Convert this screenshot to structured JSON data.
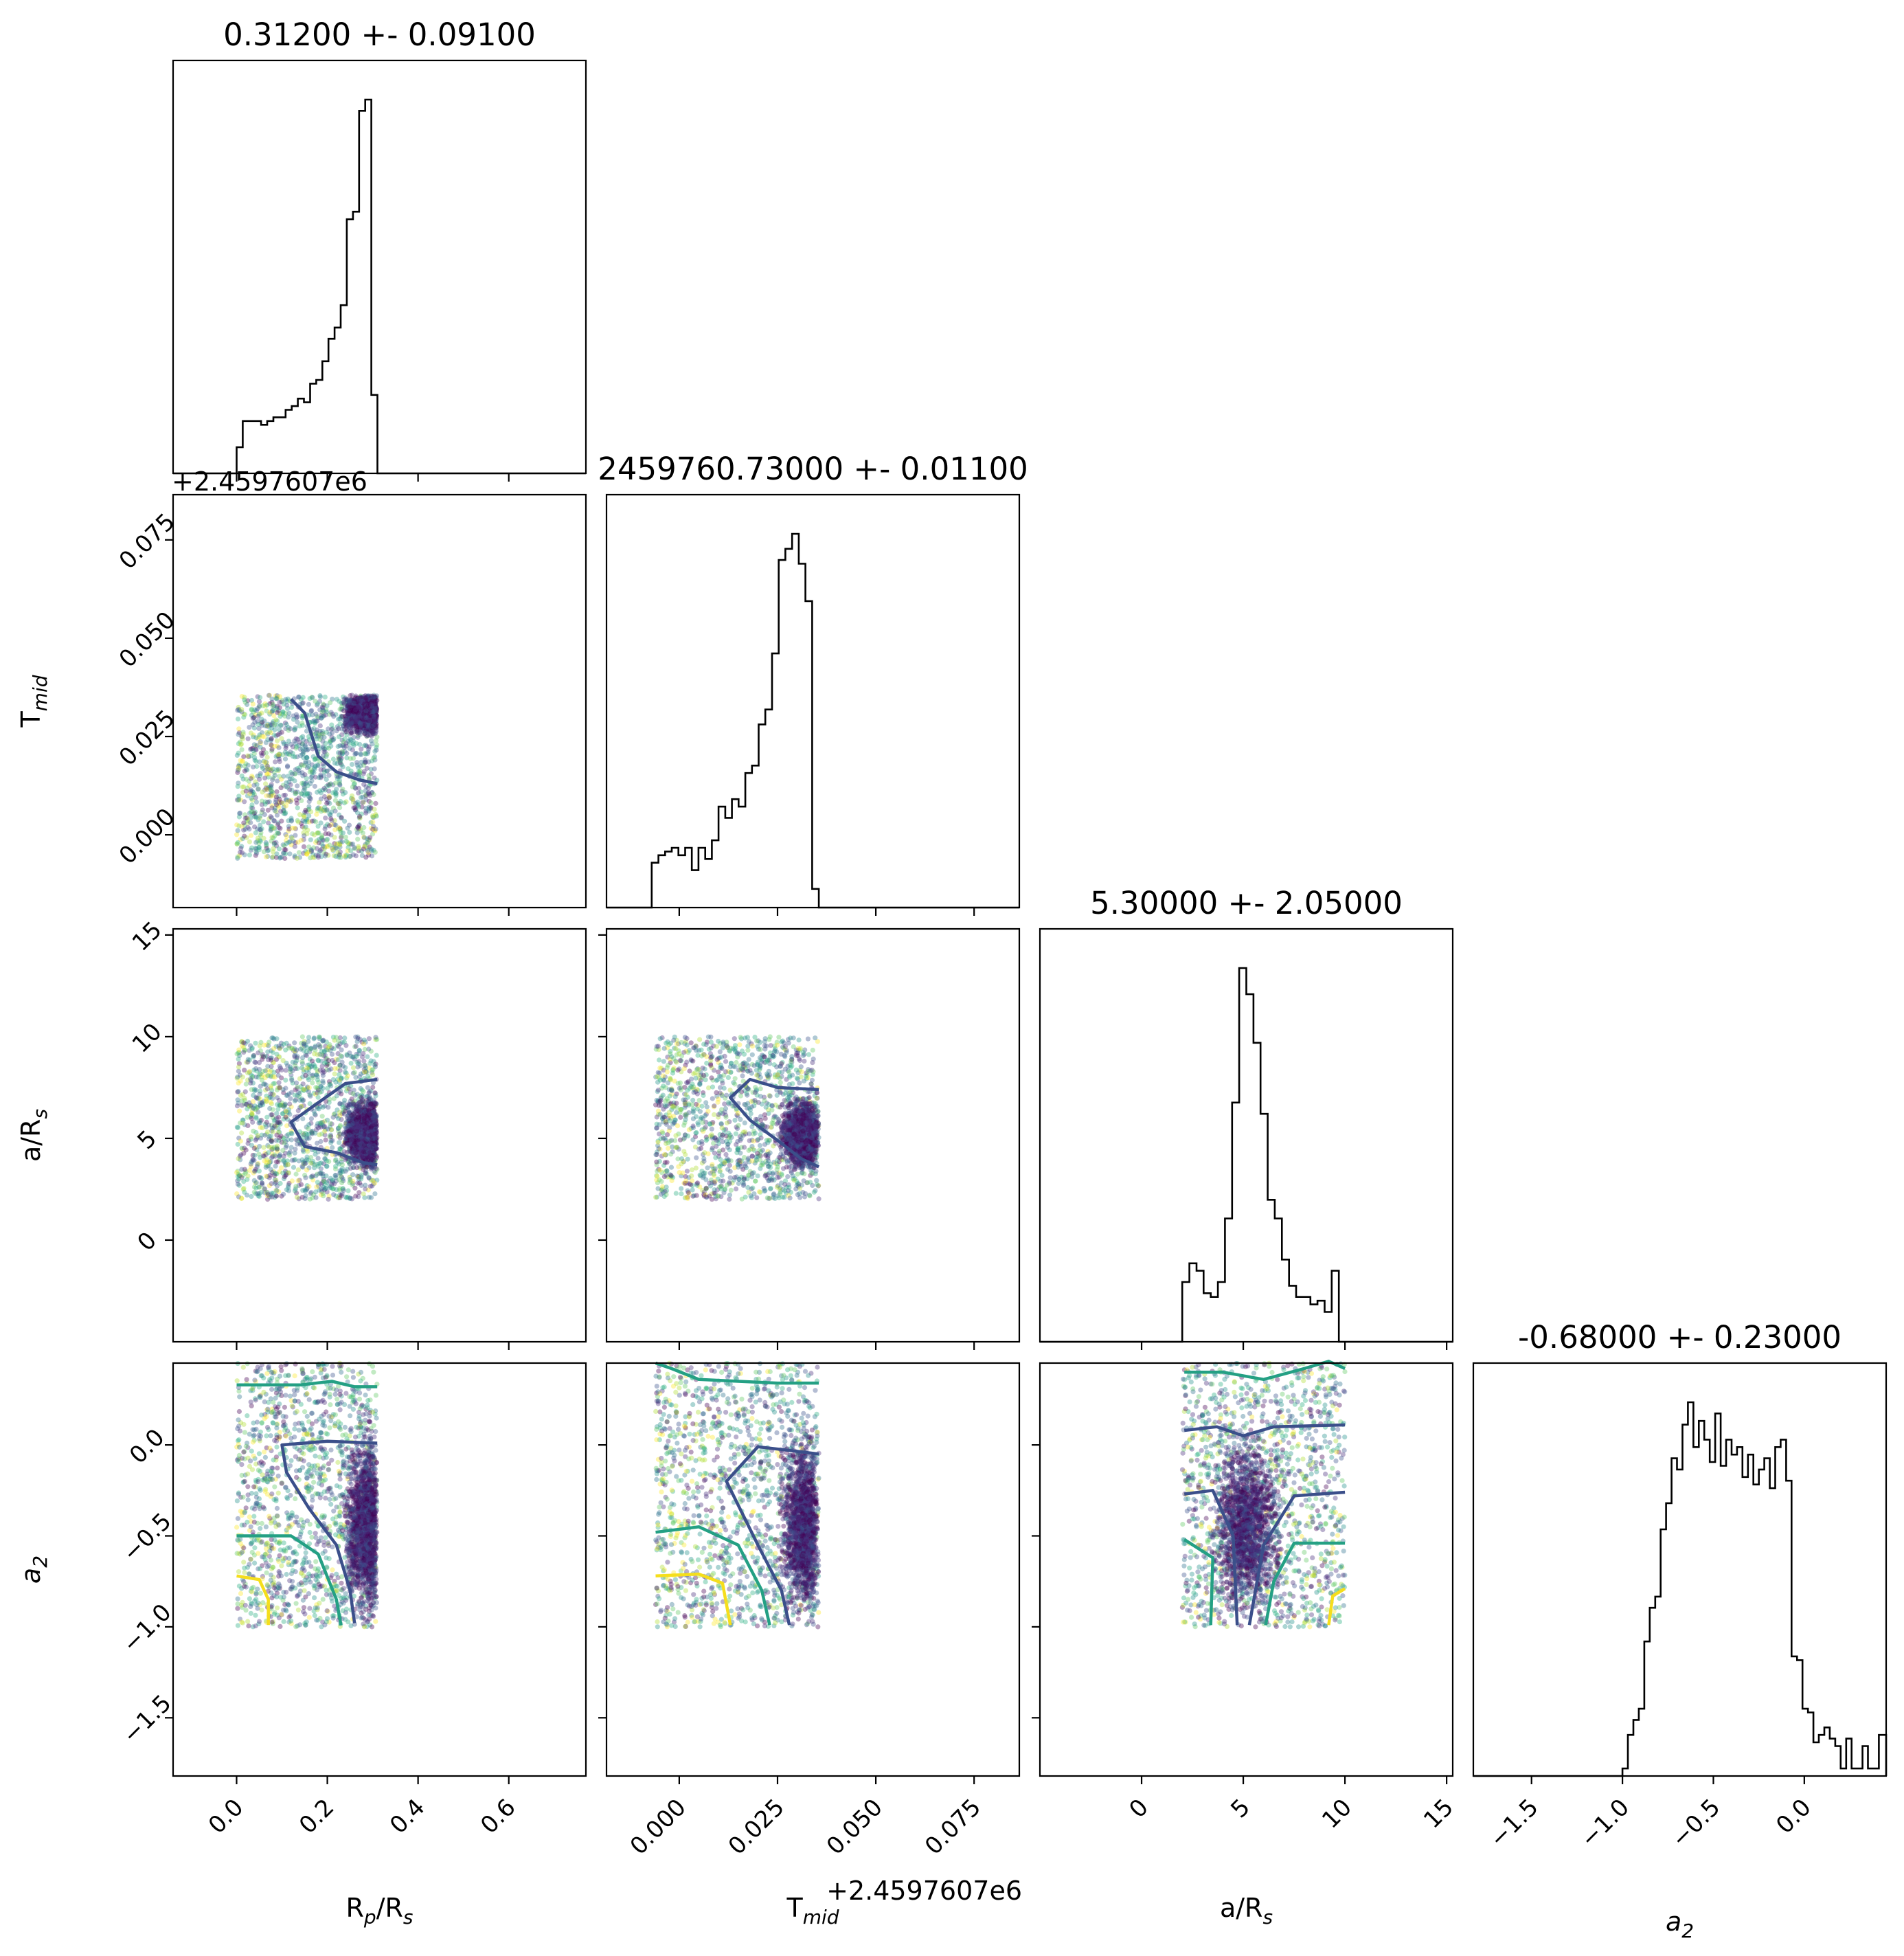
{
  "figure": {
    "type": "corner-plot"
  },
  "chart_data": {
    "type": "corner",
    "parameters": [
      {
        "key": "rp",
        "label": "R",
        "label_sub": "p",
        "label_suffix": "/R",
        "label_suffix_sub": "s",
        "title": "0.31200 +- 0.09100",
        "range": [
          -0.14,
          0.77
        ],
        "ticks": [
          0.0,
          0.2,
          0.4,
          0.6
        ],
        "tick_labels": [
          "0.0",
          "0.2",
          "0.4",
          "0.6"
        ],
        "offset_label": "",
        "samples_range": [
          0.0,
          0.31
        ],
        "hist": {
          "edges": [
            0.0,
            0.0135,
            0.027,
            0.0405,
            0.054,
            0.0675,
            0.081,
            0.0945,
            0.108,
            0.1215,
            0.135,
            0.1485,
            0.162,
            0.1755,
            0.189,
            0.2025,
            0.216,
            0.2295,
            0.243,
            0.2565,
            0.27,
            0.2835,
            0.297,
            0.3105,
            0.324
          ],
          "counts": [
            0.07,
            0.14,
            0.14,
            0.14,
            0.13,
            0.14,
            0.15,
            0.15,
            0.17,
            0.18,
            0.2,
            0.19,
            0.24,
            0.25,
            0.3,
            0.36,
            0.39,
            0.45,
            0.68,
            0.7,
            0.97,
            1.0,
            0.21,
            0.0
          ]
        }
      },
      {
        "key": "tmid",
        "label": "T",
        "label_sub": "mid",
        "label_suffix": "",
        "label_suffix_sub": "",
        "title": "2459760.73000 +- 0.01100",
        "range": [
          -0.0185,
          0.0865
        ],
        "ticks": [
          0.0,
          0.025,
          0.05,
          0.075
        ],
        "tick_labels": [
          "0.000",
          "0.025",
          "0.050",
          "0.075"
        ],
        "offset_label": "+2.4597607e6",
        "samples_range": [
          -0.006,
          0.0355
        ],
        "hist": {
          "edges": [
            -0.007,
            -0.0053,
            -0.0036,
            -0.0019,
            -0.0002,
            0.0015,
            0.0032,
            0.0049,
            0.0066,
            0.0083,
            0.01,
            0.0117,
            0.0134,
            0.0151,
            0.0168,
            0.0185,
            0.0202,
            0.0219,
            0.0236,
            0.0253,
            0.027,
            0.0287,
            0.0304,
            0.0321,
            0.0338,
            0.0355,
            0.0372
          ],
          "counts": [
            0.12,
            0.14,
            0.15,
            0.16,
            0.14,
            0.16,
            0.1,
            0.16,
            0.13,
            0.18,
            0.27,
            0.24,
            0.29,
            0.27,
            0.36,
            0.38,
            0.49,
            0.53,
            0.68,
            0.93,
            0.96,
            1.0,
            0.92,
            0.82,
            0.05,
            0.0
          ]
        }
      },
      {
        "key": "ars",
        "label": "a/R",
        "label_sub": "s",
        "label_suffix": "",
        "label_suffix_sub": "",
        "title": "5.30000 +- 2.05000",
        "range": [
          -5.0,
          15.3
        ],
        "ticks": [
          0,
          5,
          10,
          15
        ],
        "tick_labels": [
          "0",
          "5",
          "10",
          "15"
        ],
        "offset_label": "",
        "samples_range": [
          2.0,
          10.0
        ],
        "hist": {
          "edges": [
            2.0,
            2.35,
            2.7,
            3.05,
            3.4,
            3.75,
            4.1,
            4.45,
            4.8,
            5.15,
            5.5,
            5.85,
            6.2,
            6.55,
            6.9,
            7.25,
            7.6,
            7.95,
            8.3,
            8.65,
            9.0,
            9.35,
            9.7,
            10.05
          ],
          "counts": [
            0.16,
            0.21,
            0.19,
            0.13,
            0.12,
            0.16,
            0.33,
            0.64,
            1.0,
            0.93,
            0.8,
            0.61,
            0.38,
            0.33,
            0.22,
            0.15,
            0.12,
            0.12,
            0.1,
            0.11,
            0.08,
            0.19,
            0.0
          ]
        }
      },
      {
        "key": "a2",
        "label": "a",
        "label_sub": "2",
        "label_suffix": "",
        "label_suffix_sub": "",
        "label_italic": true,
        "title": "-0.68000 +- 0.23000",
        "range": [
          -1.82,
          0.45
        ],
        "ticks": [
          -1.5,
          -1.0,
          -0.5,
          0.0
        ],
        "tick_labels": [
          "−1.5",
          "−1.0",
          "−0.5",
          "0.0"
        ],
        "offset_label": "",
        "samples_range": [
          -1.0,
          0.45
        ],
        "hist": {
          "edges": [
            -1.82,
            -1.0,
            -0.97,
            -0.94,
            -0.91,
            -0.88,
            -0.85,
            -0.82,
            -0.79,
            -0.76,
            -0.73,
            -0.7,
            -0.67,
            -0.64,
            -0.61,
            -0.58,
            -0.55,
            -0.52,
            -0.49,
            -0.46,
            -0.43,
            -0.4,
            -0.37,
            -0.34,
            -0.31,
            -0.28,
            -0.25,
            -0.22,
            -0.19,
            -0.16,
            -0.13,
            -0.1,
            -0.07,
            -0.04,
            -0.01,
            0.02,
            0.05,
            0.08,
            0.11,
            0.14,
            0.17,
            0.2,
            0.23,
            0.26,
            0.29,
            0.32,
            0.35,
            0.38,
            0.41,
            0.45
          ],
          "counts": [
            0.0,
            0.02,
            0.11,
            0.15,
            0.18,
            0.36,
            0.45,
            0.48,
            0.66,
            0.73,
            0.85,
            0.82,
            0.94,
            1.0,
            0.88,
            0.95,
            0.9,
            0.84,
            0.97,
            0.83,
            0.9,
            0.86,
            0.88,
            0.8,
            0.86,
            0.78,
            0.82,
            0.85,
            0.77,
            0.88,
            0.9,
            0.79,
            0.32,
            0.31,
            0.18,
            0.17,
            0.09,
            0.11,
            0.13,
            0.1,
            0.08,
            0.02,
            0.1,
            0.02,
            0.02,
            0.08,
            0.02,
            0.02,
            0.11
          ]
        }
      }
    ],
    "colormap": "viridis",
    "colors": {
      "line": "#000000",
      "contour_1": "#3b4f8a",
      "contour_2": "#24a084",
      "contour_3": "#f5de1c"
    },
    "grid": false,
    "legend": "none"
  }
}
